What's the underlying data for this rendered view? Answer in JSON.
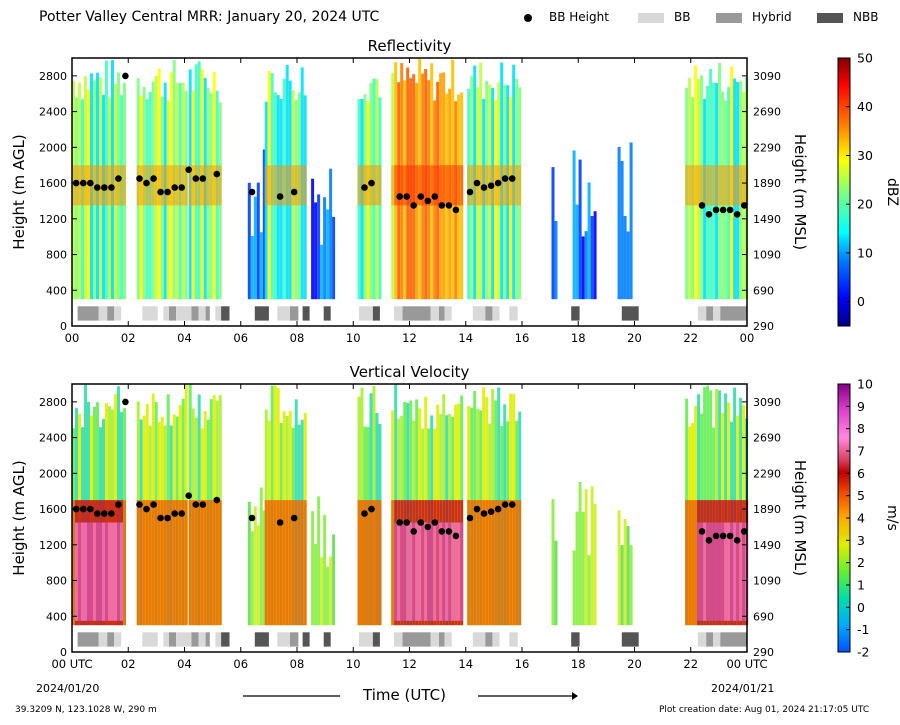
{
  "page": {
    "title": "Potter Valley Central MRR:  January 20, 2024 UTC",
    "xlabel": "Time (UTC)",
    "start_label": "00 UTC",
    "start_date": "2024/01/20",
    "end_label": "00 UTC",
    "end_date": "2024/01/21",
    "location": "39.3209 N, 123.1028 W, 290 m",
    "creation": "Plot creation date: Aug 01, 2024 21:17:05 UTC"
  },
  "legend": {
    "items": [
      {
        "label": "BB Height",
        "kind": "dot",
        "color": "#000000"
      },
      {
        "label": "BB",
        "kind": "patch",
        "color": "#d9d9d9"
      },
      {
        "label": "Hybrid",
        "kind": "patch",
        "color": "#999999"
      },
      {
        "label": "NBB",
        "kind": "patch",
        "color": "#555555"
      }
    ]
  },
  "chart_data": [
    {
      "type": "heatmap",
      "title": "Reflectivity",
      "xlabel": "",
      "ylabel": "Height (m AGL)",
      "ylabel_right": "Height (m MSL)",
      "x_ticks": [
        "00",
        "02",
        "04",
        "06",
        "08",
        "10",
        "12",
        "14",
        "16",
        "18",
        "20",
        "22",
        "00"
      ],
      "xlim": [
        0,
        24
      ],
      "ylim": [
        0,
        3000
      ],
      "y_ticks": [
        0,
        400,
        800,
        1200,
        1600,
        2000,
        2400,
        2800
      ],
      "y_ticks_right": [
        290,
        690,
        1090,
        1490,
        1890,
        2290,
        2690,
        3090
      ],
      "colorbar": {
        "label": "dBZ",
        "min": -5,
        "max": 50,
        "ticks": [
          0,
          10,
          20,
          30,
          40,
          50
        ]
      },
      "value_range": [
        -5,
        50
      ],
      "bb_height": [
        [
          0.15,
          1600
        ],
        [
          0.4,
          1600
        ],
        [
          0.65,
          1600
        ],
        [
          0.9,
          1550
        ],
        [
          1.15,
          1550
        ],
        [
          1.4,
          1550
        ],
        [
          1.65,
          1650
        ],
        [
          1.9,
          2800
        ],
        [
          2.4,
          1650
        ],
        [
          2.65,
          1600
        ],
        [
          2.9,
          1650
        ],
        [
          3.15,
          1500
        ],
        [
          3.4,
          1500
        ],
        [
          3.65,
          1550
        ],
        [
          3.9,
          1550
        ],
        [
          4.15,
          1750
        ],
        [
          4.4,
          1650
        ],
        [
          4.65,
          1650
        ],
        [
          5.15,
          1700
        ],
        [
          6.4,
          1500
        ],
        [
          7.4,
          1450
        ],
        [
          7.9,
          1500
        ],
        [
          10.4,
          1550
        ],
        [
          10.65,
          1600
        ],
        [
          11.65,
          1450
        ],
        [
          11.9,
          1450
        ],
        [
          12.15,
          1350
        ],
        [
          12.4,
          1450
        ],
        [
          12.65,
          1400
        ],
        [
          12.9,
          1450
        ],
        [
          13.15,
          1350
        ],
        [
          13.4,
          1350
        ],
        [
          13.65,
          1300
        ],
        [
          14.15,
          1500
        ],
        [
          14.4,
          1600
        ],
        [
          14.65,
          1550
        ],
        [
          14.9,
          1570
        ],
        [
          15.15,
          1600
        ],
        [
          15.4,
          1650
        ],
        [
          15.65,
          1650
        ],
        [
          22.4,
          1350
        ],
        [
          22.65,
          1250
        ],
        [
          22.9,
          1300
        ],
        [
          23.15,
          1300
        ],
        [
          23.4,
          1300
        ],
        [
          23.65,
          1250
        ],
        [
          23.9,
          1350
        ]
      ],
      "classification": [
        {
          "start": 0.2,
          "end": 0.95,
          "class": "Hybrid"
        },
        {
          "start": 0.95,
          "end": 1.25,
          "class": "BB"
        },
        {
          "start": 1.25,
          "end": 1.5,
          "class": "Hybrid"
        },
        {
          "start": 1.5,
          "end": 1.75,
          "class": "BB"
        },
        {
          "start": 2.5,
          "end": 3.05,
          "class": "BB"
        },
        {
          "start": 3.25,
          "end": 3.45,
          "class": "BB"
        },
        {
          "start": 3.45,
          "end": 3.7,
          "class": "Hybrid"
        },
        {
          "start": 3.7,
          "end": 4.25,
          "class": "BB"
        },
        {
          "start": 4.25,
          "end": 4.5,
          "class": "Hybrid"
        },
        {
          "start": 4.5,
          "end": 4.75,
          "class": "BB"
        },
        {
          "start": 4.75,
          "end": 4.9,
          "class": "Hybrid"
        },
        {
          "start": 5.1,
          "end": 5.3,
          "class": "BB"
        },
        {
          "start": 5.3,
          "end": 5.6,
          "class": "NBB"
        },
        {
          "start": 6.5,
          "end": 7.0,
          "class": "NBB"
        },
        {
          "start": 7.3,
          "end": 7.75,
          "class": "BB"
        },
        {
          "start": 7.75,
          "end": 8.05,
          "class": "Hybrid"
        },
        {
          "start": 8.2,
          "end": 8.45,
          "class": "NBB"
        },
        {
          "start": 8.95,
          "end": 9.2,
          "class": "NBB"
        },
        {
          "start": 10.2,
          "end": 10.7,
          "class": "BB"
        },
        {
          "start": 10.7,
          "end": 10.95,
          "class": "NBB"
        },
        {
          "start": 11.45,
          "end": 11.75,
          "class": "BB"
        },
        {
          "start": 11.75,
          "end": 12.75,
          "class": "Hybrid"
        },
        {
          "start": 12.75,
          "end": 13.05,
          "class": "BB"
        },
        {
          "start": 13.05,
          "end": 13.25,
          "class": "Hybrid"
        },
        {
          "start": 13.25,
          "end": 13.5,
          "class": "BB"
        },
        {
          "start": 14.25,
          "end": 14.7,
          "class": "BB"
        },
        {
          "start": 14.7,
          "end": 14.95,
          "class": "Hybrid"
        },
        {
          "start": 14.95,
          "end": 15.2,
          "class": "BB"
        },
        {
          "start": 15.55,
          "end": 15.85,
          "class": "BB"
        },
        {
          "start": 17.75,
          "end": 18.05,
          "class": "NBB"
        },
        {
          "start": 19.55,
          "end": 20.15,
          "class": "NBB"
        },
        {
          "start": 22.25,
          "end": 22.55,
          "class": "BB"
        },
        {
          "start": 22.55,
          "end": 22.8,
          "class": "Hybrid"
        },
        {
          "start": 22.8,
          "end": 23.05,
          "class": "BB"
        },
        {
          "start": 23.05,
          "end": 24.0,
          "class": "Hybrid"
        }
      ]
    },
    {
      "type": "heatmap",
      "title": "Vertical Velocity",
      "xlabel": "Time (UTC)",
      "ylabel": "Height (m AGL)",
      "ylabel_right": "Height (m MSL)",
      "x_ticks": [
        "00 UTC",
        "02",
        "04",
        "06",
        "08",
        "10",
        "12",
        "14",
        "16",
        "18",
        "20",
        "22",
        "00 UTC"
      ],
      "xlim": [
        0,
        24
      ],
      "ylim": [
        0,
        3000
      ],
      "y_ticks": [
        0,
        400,
        800,
        1200,
        1600,
        2000,
        2400,
        2800
      ],
      "y_ticks_right": [
        290,
        690,
        1090,
        1490,
        1890,
        2290,
        2690,
        3090
      ],
      "colorbar": {
        "label": "m/s",
        "min": -2,
        "max": 10,
        "ticks": [
          -2,
          -1,
          0,
          1,
          2,
          3,
          4,
          5,
          6,
          7,
          8,
          9,
          10
        ]
      },
      "value_range": [
        -2,
        10
      ],
      "bb_height": "same as Reflectivity",
      "classification": "same as Reflectivity"
    }
  ]
}
